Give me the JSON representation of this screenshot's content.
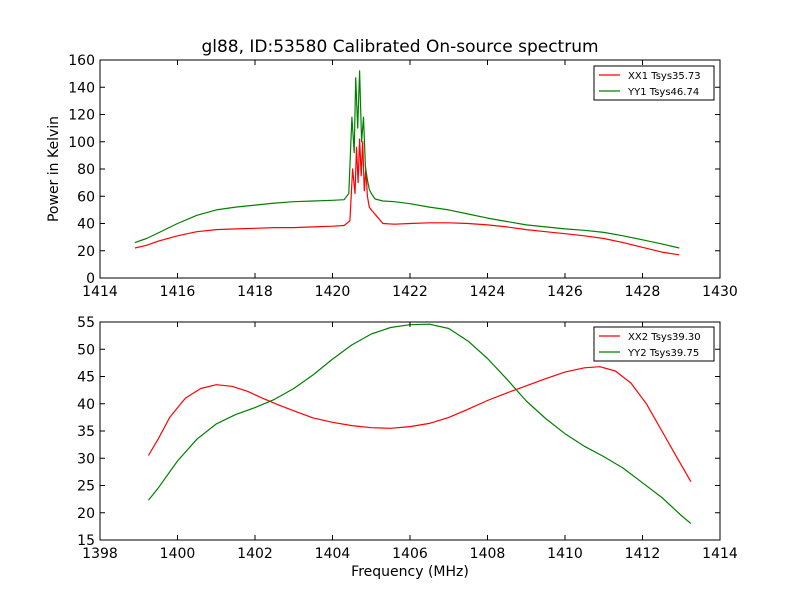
{
  "chart_data": [
    {
      "type": "line",
      "title": "gl88, ID:53580 Calibrated On-source spectrum",
      "ylabel": "Power in Kelvin",
      "xlabel": "",
      "xlim": [
        1414,
        1430
      ],
      "ylim": [
        0,
        160
      ],
      "xticks": [
        1414,
        1416,
        1418,
        1420,
        1422,
        1424,
        1426,
        1428,
        1430
      ],
      "yticks": [
        0,
        20,
        40,
        60,
        80,
        100,
        120,
        140,
        160
      ],
      "grid": false,
      "legend": "top-right",
      "series": [
        {
          "name": "XX1 Tsys35.73",
          "color": "#ff0000",
          "x": [
            1414.9,
            1415.2,
            1415.5,
            1416.0,
            1416.5,
            1417.0,
            1417.5,
            1418.0,
            1418.5,
            1419.0,
            1419.5,
            1420.0,
            1420.3,
            1420.45,
            1420.52,
            1420.58,
            1420.62,
            1420.66,
            1420.7,
            1420.74,
            1420.78,
            1420.82,
            1420.86,
            1420.9,
            1420.95,
            1421.0,
            1421.15,
            1421.3,
            1421.6,
            1422.0,
            1422.5,
            1423.0,
            1423.5,
            1424.0,
            1424.5,
            1425.0,
            1425.5,
            1426.0,
            1426.5,
            1427.0,
            1427.5,
            1428.0,
            1428.5,
            1428.95
          ],
          "y": [
            22,
            24,
            27,
            31,
            34,
            35.5,
            36,
            36.5,
            37,
            37,
            37.5,
            38,
            38.5,
            42,
            80,
            62,
            96,
            70,
            102,
            75,
            100,
            64,
            80,
            60,
            52,
            50,
            45,
            40,
            39.5,
            40,
            40.5,
            40.5,
            40,
            39,
            37.5,
            35.5,
            34,
            32.5,
            31,
            29,
            26,
            22.5,
            19,
            17
          ]
        },
        {
          "name": "YY1 Tsys46.74",
          "color": "#008000",
          "x": [
            1414.9,
            1415.2,
            1415.5,
            1416.0,
            1416.5,
            1417.0,
            1417.5,
            1418.0,
            1418.5,
            1419.0,
            1419.5,
            1420.0,
            1420.3,
            1420.42,
            1420.5,
            1420.56,
            1420.6,
            1420.65,
            1420.7,
            1420.75,
            1420.8,
            1420.85,
            1420.9,
            1420.95,
            1421.0,
            1421.1,
            1421.3,
            1421.6,
            1422.0,
            1422.5,
            1423.0,
            1423.5,
            1424.0,
            1424.5,
            1425.0,
            1425.5,
            1426.0,
            1426.5,
            1427.0,
            1427.5,
            1428.0,
            1428.5,
            1428.95
          ],
          "y": [
            26,
            29,
            33,
            40,
            46,
            50,
            52,
            53.5,
            55,
            56,
            56.5,
            57,
            57.5,
            62,
            118,
            92,
            147,
            110,
            152,
            100,
            118,
            82,
            72,
            65,
            62,
            58,
            56.5,
            56,
            54.5,
            52,
            50,
            47,
            44,
            41.5,
            39,
            37.5,
            36,
            35,
            33.5,
            31,
            28,
            25,
            22
          ]
        }
      ]
    },
    {
      "type": "line",
      "title": "",
      "xlabel": "Frequency (MHz)",
      "ylabel": "",
      "xlim": [
        1398,
        1414
      ],
      "ylim": [
        15,
        55
      ],
      "xticks": [
        1398,
        1400,
        1402,
        1404,
        1406,
        1408,
        1410,
        1412,
        1414
      ],
      "yticks": [
        15,
        20,
        25,
        30,
        35,
        40,
        45,
        50,
        55
      ],
      "grid": false,
      "legend": "top-right",
      "series": [
        {
          "name": "XX2 Tsys39.30",
          "color": "#ff0000",
          "x": [
            1399.25,
            1399.5,
            1399.8,
            1400.2,
            1400.6,
            1401.0,
            1401.4,
            1401.8,
            1402.2,
            1402.6,
            1403.0,
            1403.5,
            1404.0,
            1404.5,
            1405.0,
            1405.5,
            1406.0,
            1406.5,
            1407.0,
            1407.5,
            1408.0,
            1408.5,
            1409.0,
            1409.5,
            1410.0,
            1410.5,
            1410.9,
            1411.3,
            1411.7,
            1412.1,
            1412.5,
            1412.9,
            1413.25
          ],
          "y": [
            30.5,
            33.5,
            37.5,
            41,
            42.8,
            43.5,
            43.2,
            42.3,
            41,
            39.8,
            38.7,
            37.4,
            36.6,
            36,
            35.6,
            35.5,
            35.8,
            36.4,
            37.5,
            39,
            40.6,
            42,
            43.3,
            44.6,
            45.8,
            46.6,
            46.8,
            46,
            43.8,
            40,
            35,
            30,
            25.7
          ]
        },
        {
          "name": "YY2 Tsys39.75",
          "color": "#008000",
          "x": [
            1399.25,
            1399.5,
            1400.0,
            1400.5,
            1401.0,
            1401.5,
            1402.0,
            1402.5,
            1403.0,
            1403.5,
            1404.0,
            1404.5,
            1405.0,
            1405.5,
            1406.0,
            1406.5,
            1407.0,
            1407.5,
            1408.0,
            1408.5,
            1409.0,
            1409.5,
            1410.0,
            1410.5,
            1411.0,
            1411.5,
            1412.0,
            1412.5,
            1413.0,
            1413.25
          ],
          "y": [
            22.3,
            24.5,
            29.5,
            33.5,
            36.3,
            38,
            39.3,
            40.8,
            42.8,
            45.3,
            48.2,
            50.8,
            52.8,
            54,
            54.5,
            54.6,
            53.8,
            51.5,
            48.3,
            44.5,
            40.5,
            37.3,
            34.5,
            32.2,
            30.3,
            28.2,
            25.5,
            22.8,
            19.5,
            18
          ]
        }
      ]
    }
  ]
}
